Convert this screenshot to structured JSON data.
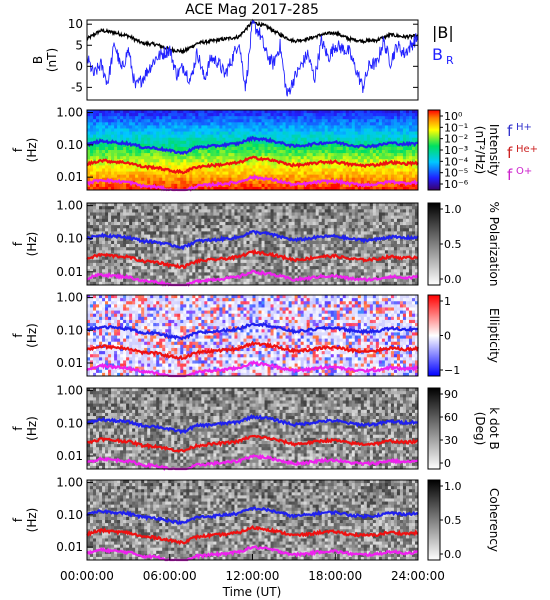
{
  "chart_data": {
    "type": "line",
    "title": "ACE Mag 2017-285",
    "xlabel": "Time (UT)",
    "x_ticks": [
      "00:00:00",
      "06:00:00",
      "12:00:00",
      "18:00:00",
      "24:00:00"
    ],
    "x_range_hours": [
      0,
      24
    ],
    "panels": [
      {
        "id": "field",
        "type": "line",
        "ylabel_main": "B",
        "ylabel_unit": "(nT)",
        "ylim": [
          -8,
          11
        ],
        "y_ticks": [
          -5,
          0,
          5,
          10
        ],
        "legend": [
          {
            "label": "|B|",
            "sub": "",
            "color": "#000000"
          },
          {
            "label": "B",
            "sub": "R",
            "color": "#2222ff"
          }
        ],
        "series": [
          {
            "color": "#000000",
            "x": [
              0,
              1,
              2,
              3,
              4,
              5,
              6,
              7,
              8,
              9,
              10,
              11,
              12,
              13,
              14,
              15,
              16,
              17,
              18,
              19,
              20,
              21,
              22,
              23,
              24
            ],
            "values": [
              6.5,
              8.5,
              8.0,
              7.2,
              5.5,
              5.2,
              4.0,
              3.5,
              5.5,
              6.0,
              6.5,
              7.0,
              10.5,
              9.5,
              7.5,
              6.0,
              6.5,
              7.5,
              8.0,
              6.5,
              6.0,
              6.2,
              7.5,
              7.0,
              7.2
            ]
          },
          {
            "color": "#2222ff",
            "x": [
              0,
              0.5,
              1,
              1.5,
              2,
              2.5,
              3,
              3.5,
              4,
              5,
              6,
              6.5,
              7,
              7.5,
              8,
              8.5,
              9,
              9.5,
              10,
              10.5,
              11,
              11.5,
              12,
              12.5,
              13,
              13.5,
              14,
              14.5,
              15,
              16,
              16.5,
              17,
              17.5,
              18,
              19,
              20,
              20.5,
              21,
              21.5,
              22,
              22.5,
              23,
              24
            ],
            "values": [
              2.0,
              -2.0,
              0.5,
              -4.0,
              5.5,
              -1.0,
              4.0,
              -5.0,
              -3.0,
              2.0,
              4.0,
              -2.0,
              0.0,
              -3.5,
              3.5,
              -3.0,
              2.0,
              1.0,
              -2.0,
              1.5,
              6.0,
              -5.0,
              10.0,
              8.0,
              3.0,
              0.5,
              5.0,
              -7.0,
              -3.0,
              3.0,
              -3.0,
              6.0,
              2.0,
              5.0,
              3.5,
              -5.0,
              0.5,
              0.5,
              6.0,
              1.0,
              5.0,
              3.0,
              7.0
            ]
          }
        ]
      },
      {
        "id": "intensity",
        "type": "heatmap",
        "ylabel_main": "f",
        "ylabel_unit": "(Hz)",
        "ylim": [
          0.004,
          1.2
        ],
        "y_scale": "log",
        "y_ticks": [
          "1.00",
          "0.10",
          "0.01"
        ],
        "colorbar": "rainbow",
        "colorbar_ticks": [
          "10⁰",
          "10⁻¹",
          "10⁻²",
          "10⁻³",
          "10⁻⁴",
          "10⁻⁵",
          "10⁻⁶"
        ],
        "colorbar_title": "Intensity",
        "colorbar_unit": "(nT²/Hz)"
      },
      {
        "id": "polarization",
        "type": "heatmap",
        "ylabel_main": "f",
        "ylabel_unit": "(Hz)",
        "ylim": [
          0.004,
          1.2
        ],
        "y_scale": "log",
        "y_ticks": [
          "1.00",
          "0.10",
          "0.01"
        ],
        "colorbar": "gray",
        "colorbar_ticks": [
          "1.0",
          "0.5",
          "0.0"
        ],
        "colorbar_title": "% Polarization",
        "colorbar_unit": ""
      },
      {
        "id": "ellipticity",
        "type": "heatmap",
        "ylabel_main": "f",
        "ylabel_unit": "(Hz)",
        "ylim": [
          0.004,
          1.2
        ],
        "y_scale": "log",
        "y_ticks": [
          "1.00",
          "0.10",
          "0.01"
        ],
        "colorbar": "bluewhitered",
        "colorbar_ticks": [
          "1",
          "0",
          "−1"
        ],
        "colorbar_title": "Ellipticity",
        "colorbar_unit": ""
      },
      {
        "id": "kdotb",
        "type": "heatmap",
        "ylabel_main": "f",
        "ylabel_unit": "(Hz)",
        "ylim": [
          0.004,
          1.2
        ],
        "y_scale": "log",
        "y_ticks": [
          "1.00",
          "0.10",
          "0.01"
        ],
        "colorbar": "gray",
        "colorbar_ticks": [
          "90",
          "60",
          "30",
          "0"
        ],
        "colorbar_title": "k dot B",
        "colorbar_unit": "(Deg)"
      },
      {
        "id": "coherency",
        "type": "heatmap",
        "ylabel_main": "f",
        "ylabel_unit": "(Hz)",
        "ylim": [
          0.004,
          1.2
        ],
        "y_scale": "log",
        "y_ticks": [
          "1.00",
          "0.10",
          "0.01"
        ],
        "colorbar": "gray",
        "colorbar_ticks": [
          "1.0",
          "0.5",
          "0.0"
        ],
        "colorbar_title": "Coherency",
        "colorbar_unit": ""
      }
    ],
    "gyro_legend": [
      {
        "label": "f",
        "sub": "H+",
        "color": "#3333cc"
      },
      {
        "label": "f",
        "sub": "He+",
        "color": "#cc2222"
      },
      {
        "label": "f",
        "sub": "O+",
        "color": "#cc22cc"
      }
    ],
    "gyrofrequency_lines": {
      "x": [
        0,
        1,
        2,
        3,
        4,
        5,
        6,
        7,
        8,
        9,
        10,
        11,
        12,
        13,
        14,
        15,
        16,
        17,
        18,
        19,
        20,
        21,
        22,
        23,
        24
      ],
      "f_H_plus": [
        0.1,
        0.13,
        0.12,
        0.11,
        0.085,
        0.08,
        0.065,
        0.055,
        0.085,
        0.09,
        0.1,
        0.11,
        0.16,
        0.145,
        0.115,
        0.09,
        0.1,
        0.115,
        0.12,
        0.1,
        0.09,
        0.095,
        0.115,
        0.105,
        0.11
      ],
      "f_He_plus": [
        0.025,
        0.033,
        0.03,
        0.028,
        0.021,
        0.02,
        0.016,
        0.014,
        0.021,
        0.023,
        0.025,
        0.028,
        0.04,
        0.036,
        0.029,
        0.023,
        0.025,
        0.029,
        0.03,
        0.025,
        0.023,
        0.024,
        0.029,
        0.026,
        0.028
      ],
      "f_O_plus": [
        0.0063,
        0.0083,
        0.0075,
        0.007,
        0.0053,
        0.005,
        0.004,
        0.0035,
        0.0053,
        0.0058,
        0.0063,
        0.007,
        0.01,
        0.009,
        0.0073,
        0.0058,
        0.0063,
        0.0073,
        0.0075,
        0.0063,
        0.0058,
        0.006,
        0.0073,
        0.0065,
        0.007
      ]
    },
    "grid": false
  }
}
